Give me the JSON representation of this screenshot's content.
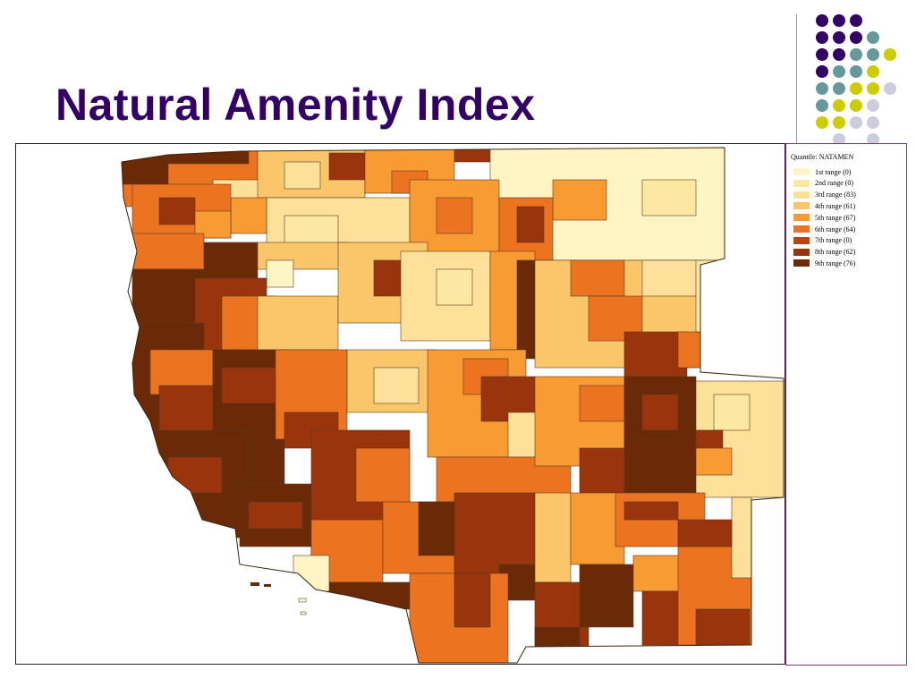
{
  "slide": {
    "title": "Natural Amenity Index"
  },
  "decoration": {
    "dot_colors": {
      "purple": "#330066",
      "teal": "#669999",
      "olive": "#cccc00",
      "lavender": "#ccccdd"
    },
    "dot_grid": [
      [
        "purple",
        "purple",
        "purple",
        "none",
        "none"
      ],
      [
        "purple",
        "purple",
        "purple",
        "teal",
        "none"
      ],
      [
        "purple",
        "purple",
        "teal",
        "teal",
        "olive"
      ],
      [
        "purple",
        "teal",
        "teal",
        "olive",
        "none"
      ],
      [
        "teal",
        "teal",
        "olive",
        "olive",
        "lavender"
      ],
      [
        "teal",
        "olive",
        "olive",
        "lavender",
        "none"
      ],
      [
        "olive",
        "olive",
        "lavender",
        "lavender",
        "none"
      ],
      [
        "none",
        "lavender",
        "none",
        "lavender",
        "none"
      ]
    ]
  },
  "map": {
    "region": "Western United States counties",
    "legend": {
      "title": "Quantile: NATAMEN",
      "items": [
        {
          "label": "1st range (0)",
          "color": "#fff5c4"
        },
        {
          "label": "2nd range (0)",
          "color": "#fde8a3"
        },
        {
          "label": "3rd range (83)",
          "color": "#fde19a"
        },
        {
          "label": "4th range (61)",
          "color": "#fbc66a"
        },
        {
          "label": "5th range (67)",
          "color": "#f99b33"
        },
        {
          "label": "6th range (64)",
          "color": "#ec7420"
        },
        {
          "label": "7th range (0)",
          "color": "#b8470f"
        },
        {
          "label": "8th range (62)",
          "color": "#9a340c"
        },
        {
          "label": "9th range (76)",
          "color": "#6a2a08"
        }
      ]
    }
  }
}
